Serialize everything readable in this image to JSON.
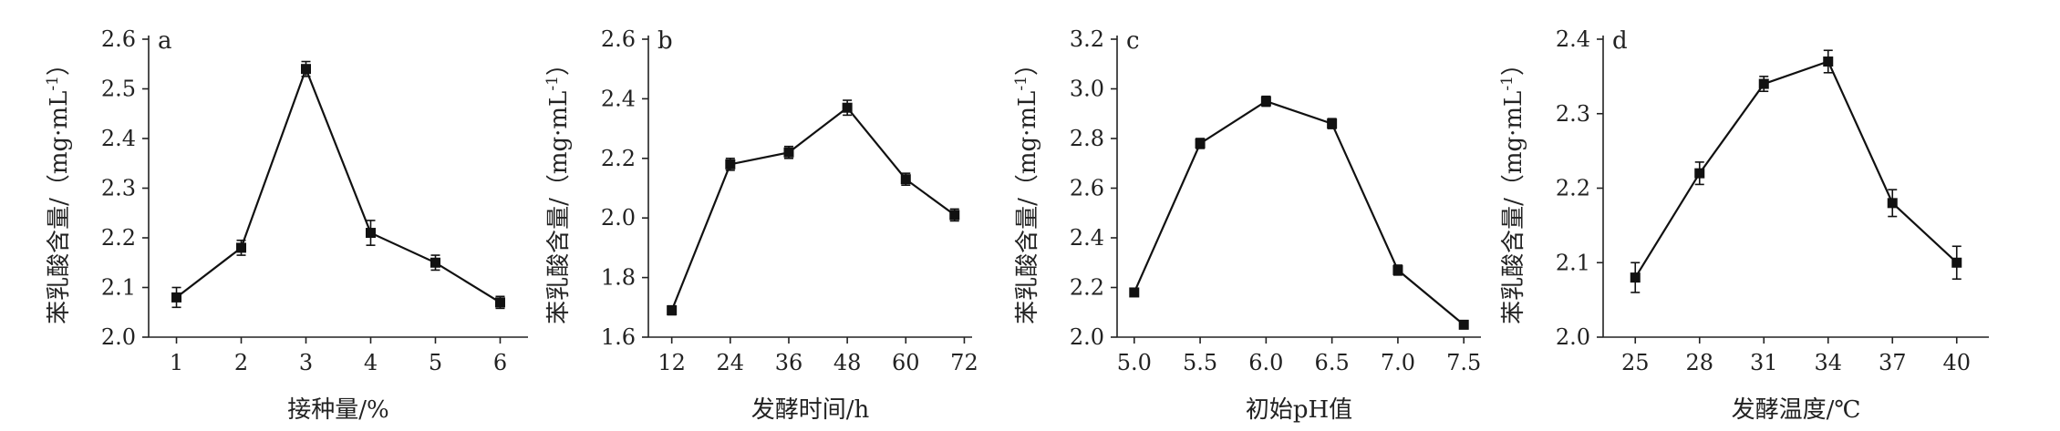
{
  "chart_data": [
    {
      "panel": "a",
      "type": "line",
      "xlabel": "接种量/%",
      "ylabel": "苯乳酸含量/（mg·mL-1）",
      "x_ticks": [
        "1",
        "2",
        "3",
        "4",
        "5",
        "6"
      ],
      "y_ticks": [
        "2.0",
        "2.1",
        "2.2",
        "2.3",
        "2.4",
        "2.5",
        "2.6"
      ],
      "ylim": [
        2.0,
        2.6
      ],
      "series": [
        {
          "x": [
            1,
            2,
            3,
            4,
            5,
            6
          ],
          "y": [
            2.08,
            2.18,
            2.54,
            2.21,
            2.15,
            2.07
          ],
          "error": [
            0.02,
            0.015,
            0.015,
            0.025,
            0.015,
            0.012
          ]
        }
      ]
    },
    {
      "panel": "b",
      "type": "line",
      "xlabel": "发酵时间/h",
      "ylabel": "苯乳酸含量/（mg·mL-1）",
      "x_ticks": [
        "12",
        "24",
        "36",
        "48",
        "60",
        "72"
      ],
      "y_ticks": [
        "1.6",
        "1.8",
        "2.0",
        "2.2",
        "2.4",
        "2.6"
      ],
      "ylim": [
        1.6,
        2.6
      ],
      "series": [
        {
          "x": [
            12,
            24,
            36,
            48,
            60,
            70
          ],
          "y": [
            1.69,
            2.18,
            2.22,
            2.37,
            2.13,
            2.01
          ],
          "error": [
            0.015,
            0.02,
            0.02,
            0.025,
            0.02,
            0.02
          ]
        }
      ]
    },
    {
      "panel": "c",
      "type": "line",
      "xlabel": "初始pH值",
      "ylabel": "苯乳酸含量/（mg·mL-1）",
      "x_ticks": [
        "5.0",
        "5.5",
        "6.0",
        "6.5",
        "7.0",
        "7.5"
      ],
      "y_ticks": [
        "2.0",
        "2.2",
        "2.4",
        "2.6",
        "2.8",
        "3.0",
        "3.2"
      ],
      "ylim": [
        2.0,
        3.2
      ],
      "series": [
        {
          "x": [
            5.0,
            5.5,
            6.0,
            6.5,
            7.0,
            7.5
          ],
          "y": [
            2.18,
            2.78,
            2.95,
            2.86,
            2.27,
            2.05
          ],
          "error": [
            0.015,
            0.02,
            0.02,
            0.02,
            0.02,
            0.012
          ]
        }
      ]
    },
    {
      "panel": "d",
      "type": "line",
      "xlabel": "发酵温度/℃",
      "ylabel": "苯乳酸含量/（mg·mL-1）",
      "x_ticks": [
        "25",
        "28",
        "31",
        "34",
        "37",
        "40"
      ],
      "y_ticks": [
        "2.0",
        "2.1",
        "2.2",
        "2.3",
        "2.4"
      ],
      "ylim": [
        2.0,
        2.4
      ],
      "series": [
        {
          "x": [
            25,
            28,
            31,
            34,
            37,
            40
          ],
          "y": [
            2.08,
            2.22,
            2.34,
            2.37,
            2.18,
            2.1
          ],
          "error": [
            0.02,
            0.015,
            0.01,
            0.015,
            0.018,
            0.022
          ]
        }
      ]
    }
  ]
}
